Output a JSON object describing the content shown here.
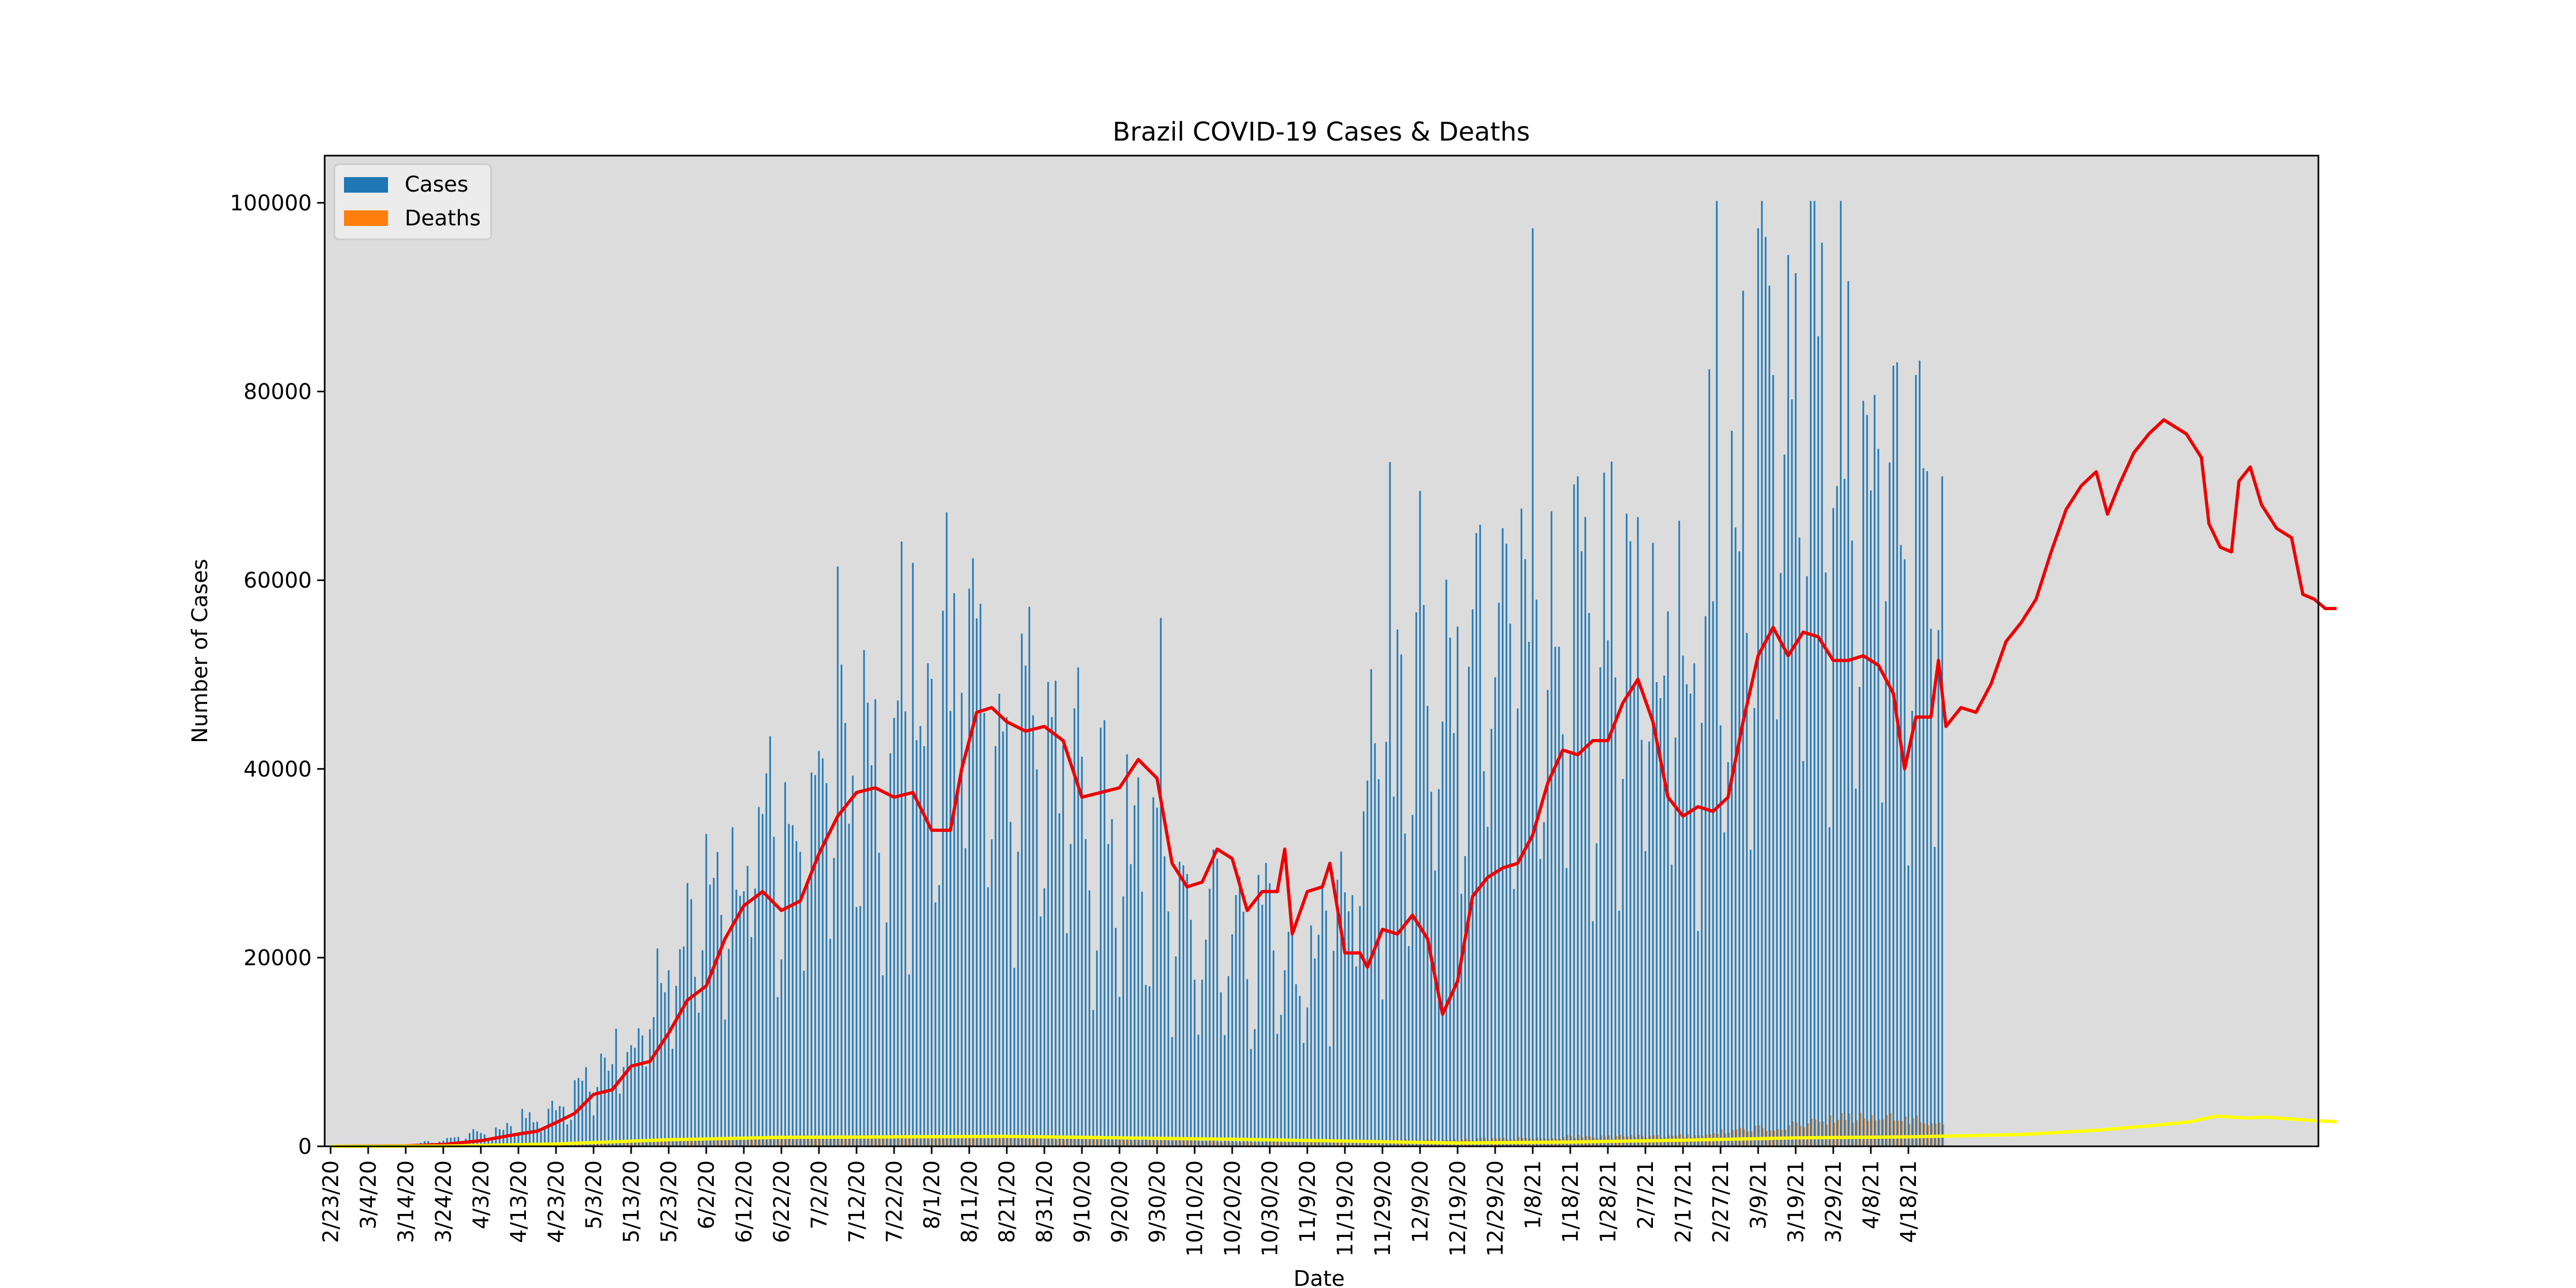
{
  "chart_data": {
    "type": "bar",
    "title": "Brazil COVID-19 Cases & Deaths",
    "xlabel": "Date",
    "ylabel": "Number of Cases",
    "ylim": [
      0,
      105000
    ],
    "yticks": [
      0,
      20000,
      40000,
      60000,
      80000,
      100000
    ],
    "xticks": [
      "2/23/20",
      "3/4/20",
      "3/14/20",
      "3/24/20",
      "4/3/20",
      "4/13/20",
      "4/23/20",
      "5/3/20",
      "5/13/20",
      "5/23/20",
      "6/2/20",
      "6/12/20",
      "6/22/20",
      "7/2/20",
      "7/12/20",
      "7/22/20",
      "8/1/20",
      "8/11/20",
      "8/21/20",
      "8/31/20",
      "9/10/20",
      "9/20/20",
      "9/30/20",
      "10/10/20",
      "10/20/20",
      "10/30/20",
      "11/9/20",
      "11/19/20",
      "11/29/20",
      "12/9/20",
      "12/19/20",
      "12/29/20",
      "1/8/21",
      "1/18/21",
      "1/28/21",
      "2/7/21",
      "2/17/21",
      "2/27/21",
      "3/9/21",
      "3/19/21",
      "3/29/21",
      "4/8/21",
      "4/18/21"
    ],
    "legend_position": "upper-left",
    "background": "#dcdcdc",
    "colors": {
      "cases": "#1f77b4",
      "deaths": "#ff7f0e",
      "cases_avg": "#ee0000",
      "deaths_avg": "#ffff00"
    },
    "x_start": "2/23/20",
    "x_end": "4/27/21",
    "series": [
      {
        "name": "Cases",
        "kind": "bar",
        "color": "#1f77b4",
        "daily_checkpoints": {
          "dates": [
            "2/23/20",
            "3/14/20",
            "4/3/20",
            "4/23/20",
            "5/13/20",
            "6/2/20",
            "6/22/20",
            "7/22/20",
            "8/11/20",
            "8/31/20",
            "9/20/20",
            "10/10/20",
            "10/30/20",
            "11/9/20",
            "11/29/20",
            "12/19/20",
            "1/8/21",
            "1/28/21",
            "2/17/21",
            "3/9/21",
            "3/29/21",
            "4/8/21",
            "4/27/21"
          ],
          "values": [
            0,
            100,
            1200,
            3200,
            10000,
            24000,
            32000,
            40000,
            45000,
            38000,
            30000,
            22000,
            20000,
            18000,
            34000,
            48000,
            52000,
            52000,
            47000,
            68000,
            76000,
            68000,
            58000
          ]
        }
      },
      {
        "name": "Deaths",
        "kind": "bar",
        "color": "#ff7f0e",
        "daily_checkpoints": {
          "dates": [
            "2/23/20",
            "3/24/20",
            "4/23/20",
            "5/23/20",
            "6/22/20",
            "7/22/20",
            "8/21/20",
            "9/20/20",
            "10/20/20",
            "11/19/20",
            "12/19/20",
            "1/18/21",
            "2/17/21",
            "3/19/21",
            "3/29/21",
            "4/8/21",
            "4/27/21"
          ],
          "values": [
            0,
            10,
            150,
            800,
            1000,
            1050,
            1000,
            800,
            500,
            500,
            700,
            1000,
            1100,
            2300,
            3000,
            3100,
            2500
          ]
        }
      },
      {
        "kind": "line",
        "color": "#ee0000",
        "points": [
          [
            0,
            0
          ],
          [
            20,
            50
          ],
          [
            30,
            200
          ],
          [
            40,
            600
          ],
          [
            50,
            1300
          ],
          [
            55,
            1600
          ],
          [
            60,
            2500
          ],
          [
            65,
            3500
          ],
          [
            70,
            5500
          ],
          [
            75,
            6000
          ],
          [
            80,
            8500
          ],
          [
            85,
            9000
          ],
          [
            90,
            12000
          ],
          [
            95,
            15500
          ],
          [
            100,
            17000
          ],
          [
            105,
            22000
          ],
          [
            110,
            25500
          ],
          [
            115,
            27000
          ],
          [
            120,
            25000
          ],
          [
            125,
            26000
          ],
          [
            130,
            31000
          ],
          [
            135,
            35000
          ],
          [
            140,
            37500
          ],
          [
            145,
            38000
          ],
          [
            150,
            37000
          ],
          [
            155,
            37500
          ],
          [
            160,
            33500
          ],
          [
            165,
            33500
          ],
          [
            168,
            40000
          ],
          [
            172,
            46000
          ],
          [
            176,
            46500
          ],
          [
            180,
            45000
          ],
          [
            185,
            44000
          ],
          [
            190,
            44500
          ],
          [
            195,
            43000
          ],
          [
            200,
            37000
          ],
          [
            205,
            37500
          ],
          [
            210,
            38000
          ],
          [
            215,
            41000
          ],
          [
            220,
            39000
          ],
          [
            224,
            30000
          ],
          [
            228,
            27500
          ],
          [
            232,
            28000
          ],
          [
            236,
            31500
          ],
          [
            240,
            30500
          ],
          [
            244,
            25000
          ],
          [
            248,
            27000
          ],
          [
            252,
            27000
          ],
          [
            254,
            31500
          ],
          [
            256,
            22500
          ],
          [
            260,
            27000
          ],
          [
            264,
            27500
          ],
          [
            266,
            30000
          ],
          [
            270,
            20500
          ],
          [
            274,
            20500
          ],
          [
            276,
            19000
          ],
          [
            280,
            23000
          ],
          [
            284,
            22500
          ],
          [
            288,
            24500
          ],
          [
            292,
            22000
          ],
          [
            296,
            14000
          ],
          [
            300,
            17500
          ],
          [
            304,
            26500
          ],
          [
            308,
            28500
          ],
          [
            312,
            29500
          ],
          [
            316,
            30000
          ],
          [
            320,
            33000
          ],
          [
            324,
            38500
          ],
          [
            328,
            42000
          ],
          [
            332,
            41500
          ],
          [
            336,
            43000
          ],
          [
            340,
            43000
          ],
          [
            344,
            47000
          ],
          [
            348,
            49500
          ],
          [
            352,
            45000
          ],
          [
            356,
            37000
          ],
          [
            360,
            35000
          ],
          [
            364,
            36000
          ],
          [
            368,
            35500
          ],
          [
            372,
            37000
          ],
          [
            376,
            45000
          ],
          [
            380,
            52000
          ],
          [
            384,
            55000
          ],
          [
            388,
            52000
          ],
          [
            392,
            54500
          ],
          [
            396,
            54000
          ],
          [
            400,
            51500
          ],
          [
            404,
            51500
          ],
          [
            408,
            52000
          ],
          [
            412,
            51000
          ],
          [
            416,
            48000
          ],
          [
            419,
            40000
          ],
          [
            422,
            45500
          ],
          [
            426,
            45500
          ],
          [
            428,
            51500
          ],
          [
            430,
            44500
          ],
          [
            434,
            46500
          ],
          [
            438,
            46000
          ],
          [
            442,
            49000
          ],
          [
            446,
            53500
          ],
          [
            450,
            55500
          ],
          [
            454,
            58000
          ],
          [
            458,
            63000
          ],
          [
            462,
            67500
          ],
          [
            466,
            70000
          ],
          [
            470,
            71500
          ],
          [
            473,
            67000
          ],
          [
            476,
            70000
          ],
          [
            480,
            73500
          ],
          [
            484,
            75500
          ],
          [
            488,
            77000
          ],
          [
            490,
            76500
          ],
          [
            494,
            75500
          ],
          [
            498,
            73000
          ],
          [
            500,
            66000
          ],
          [
            503,
            63500
          ],
          [
            506,
            63000
          ],
          [
            508,
            70500
          ],
          [
            511,
            72000
          ],
          [
            514,
            68000
          ],
          [
            518,
            65500
          ],
          [
            522,
            64500
          ],
          [
            525,
            58500
          ],
          [
            528,
            58000
          ],
          [
            531,
            57000
          ],
          [
            534,
            57000
          ]
        ]
      },
      {
        "kind": "line",
        "color": "#ffff00",
        "points": [
          [
            0,
            0
          ],
          [
            30,
            30
          ],
          [
            60,
            250
          ],
          [
            90,
            700
          ],
          [
            120,
            950
          ],
          [
            150,
            1000
          ],
          [
            180,
            1050
          ],
          [
            210,
            900
          ],
          [
            240,
            750
          ],
          [
            270,
            550
          ],
          [
            300,
            350
          ],
          [
            330,
            450
          ],
          [
            360,
            650
          ],
          [
            390,
            900
          ],
          [
            420,
            1000
          ],
          [
            450,
            1250
          ],
          [
            470,
            1700
          ],
          [
            485,
            2200
          ],
          [
            495,
            2600
          ],
          [
            502,
            3200
          ],
          [
            510,
            3000
          ],
          [
            515,
            3100
          ],
          [
            525,
            2800
          ],
          [
            534,
            2600
          ]
        ]
      }
    ]
  }
}
